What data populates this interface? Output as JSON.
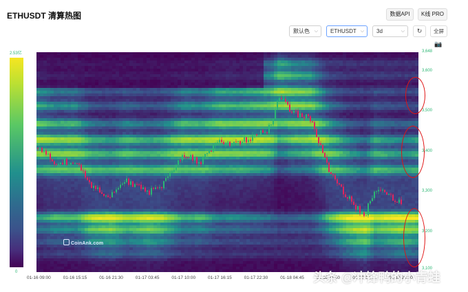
{
  "header": {
    "title": "ETHUSDT 清算热图",
    "api_button": "数据API",
    "pro_button": "K线 PRO"
  },
  "toolbar": {
    "color_select": "默认色",
    "symbol_select": "ETHUSDT",
    "period_select": "3d",
    "refresh_icon": "↻",
    "fullscreen_button": "全屏",
    "camera_icon": "📷"
  },
  "legend": {
    "max_label": "2.53亿",
    "min_label": "0"
  },
  "brand": {
    "logo_text": "CoinAnk.com",
    "watermark": "头条 @冲锋鸭的小青蛙"
  },
  "colors": {
    "accent_green": "#2bb673",
    "candle_up": "#2bb673",
    "candle_down": "#e0245e",
    "annotation_red": "#e01414"
  },
  "chart_data": {
    "type": "heatmap",
    "x_ticks": [
      "01-16 09:00",
      "01-16 15:15",
      "01-16 21:30",
      "01-17 03:45",
      "01-17 10:00",
      "01-17 16:15",
      "01-17 22:30",
      "01-18 04:45",
      "01-18 11:00",
      "01-18 17:15",
      "01-18 23:30"
    ],
    "y_ticks": [
      "3,648",
      "3,600",
      "3,500",
      "3,400",
      "3,300",
      "3,200",
      "3,100"
    ],
    "ylim": [
      3100,
      3648
    ],
    "legend": {
      "max": "2.53亿",
      "min": "0"
    },
    "price_path": [
      [
        "01-16 09:00",
        3410
      ],
      [
        "01-16 12:00",
        3370
      ],
      [
        "01-16 15:15",
        3380
      ],
      [
        "01-16 18:00",
        3310
      ],
      [
        "01-16 21:30",
        3290
      ],
      [
        "01-17 00:00",
        3330
      ],
      [
        "01-17 03:45",
        3300
      ],
      [
        "01-17 06:00",
        3310
      ],
      [
        "01-17 10:00",
        3390
      ],
      [
        "01-17 13:00",
        3375
      ],
      [
        "01-17 16:15",
        3430
      ],
      [
        "01-17 19:00",
        3420
      ],
      [
        "01-17 22:30",
        3440
      ],
      [
        "01-18 01:00",
        3460
      ],
      [
        "01-18 02:30",
        3540
      ],
      [
        "01-18 04:45",
        3500
      ],
      [
        "01-18 08:00",
        3480
      ],
      [
        "01-18 11:00",
        3360
      ],
      [
        "01-18 14:00",
        3290
      ],
      [
        "01-18 17:15",
        3240
      ],
      [
        "01-18 19:00",
        3310
      ],
      [
        "01-18 23:30",
        3270
      ],
      [
        "01-19 02:00",
        3290
      ],
      [
        "01-19 05:00",
        3320
      ]
    ],
    "liquidation_bands": [
      {
        "price": 3620,
        "intensity": 0.45
      },
      {
        "price": 3590,
        "intensity": 0.5
      },
      {
        "price": 3550,
        "intensity": 0.6
      },
      {
        "price": 3515,
        "intensity": 0.55
      },
      {
        "price": 3470,
        "intensity": 0.55
      },
      {
        "price": 3430,
        "intensity": 0.65
      },
      {
        "price": 3395,
        "intensity": 0.55
      },
      {
        "price": 3355,
        "intensity": 0.45
      },
      {
        "price": 3235,
        "intensity": 0.85
      },
      {
        "price": 3205,
        "intensity": 0.7
      },
      {
        "price": 3175,
        "intensity": 0.55
      },
      {
        "price": 3145,
        "intensity": 0.4
      }
    ]
  }
}
